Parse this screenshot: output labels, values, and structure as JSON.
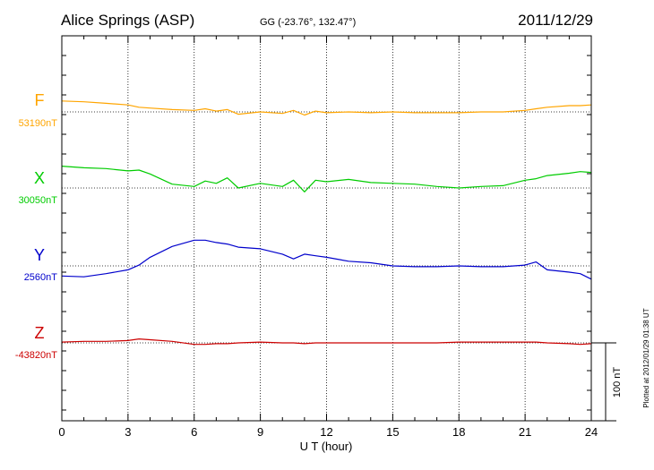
{
  "header": {
    "station": "Alice Springs (ASP)",
    "coords": "GG (-23.76°, 132.47°)",
    "date": "2011/12/29"
  },
  "side_note": "Plotted at 2012/01/29 01:38 UT",
  "chart_data": {
    "type": "line",
    "title": "Alice Springs (ASP)",
    "xlabel": "U T (hour)",
    "ylabel": "",
    "xlim": [
      0,
      24
    ],
    "x_ticks": [
      "0",
      "3",
      "6",
      "9",
      "12",
      "15",
      "18",
      "21",
      "24"
    ],
    "grid": true,
    "scale_bar": {
      "label": "100 nT",
      "value_nT": 100
    },
    "x": [
      0,
      1,
      2,
      3,
      3.5,
      4,
      5,
      6,
      6.5,
      7,
      7.5,
      8,
      9,
      10,
      10.5,
      11,
      11.5,
      12,
      13,
      14,
      15,
      16,
      17,
      18,
      19,
      20,
      21,
      21.5,
      22,
      23,
      23.5,
      24
    ],
    "series": [
      {
        "name": "F",
        "baseline": "53190nT",
        "color": "#ffa500",
        "values": [
          53204,
          53203,
          53201,
          53199,
          53196,
          53195,
          53193,
          53192,
          53194,
          53191,
          53193,
          53187,
          53190,
          53188,
          53192,
          53186,
          53191,
          53189,
          53190,
          53189,
          53190,
          53189,
          53189,
          53189,
          53190,
          53190,
          53192,
          53194,
          53196,
          53198,
          53198,
          53199
        ]
      },
      {
        "name": "X",
        "baseline": "30050nT",
        "color": "#00cc00",
        "values": [
          30078,
          30076,
          30075,
          30072,
          30073,
          30068,
          30055,
          30052,
          30059,
          30056,
          30063,
          30050,
          30056,
          30052,
          30060,
          30045,
          30060,
          30058,
          30061,
          30057,
          30056,
          30055,
          30052,
          30050,
          30052,
          30053,
          30060,
          30062,
          30066,
          30069,
          30071,
          30070
        ]
      },
      {
        "name": "Y",
        "baseline": "2560nT",
        "color": "#0000cc",
        "values": [
          2547,
          2546,
          2550,
          2555,
          2561,
          2571,
          2585,
          2593,
          2593,
          2590,
          2588,
          2584,
          2582,
          2575,
          2569,
          2575,
          2573,
          2571,
          2566,
          2564,
          2560,
          2559,
          2559,
          2560,
          2559,
          2559,
          2561,
          2565,
          2555,
          2552,
          2550,
          2543
        ]
      },
      {
        "name": "Z",
        "baseline": "-43820nT",
        "color": "#cc0000",
        "values": [
          -43819,
          -43818,
          -43818,
          -43817,
          -43815,
          -43816,
          -43818,
          -43822,
          -43822,
          -43821,
          -43821,
          -43820,
          -43819,
          -43820,
          -43820,
          -43821,
          -43820,
          -43820,
          -43820,
          -43820,
          -43820,
          -43820,
          -43820,
          -43819,
          -43819,
          -43819,
          -43819,
          -43819,
          -43820,
          -43821,
          -43822,
          -43821
        ]
      }
    ]
  }
}
